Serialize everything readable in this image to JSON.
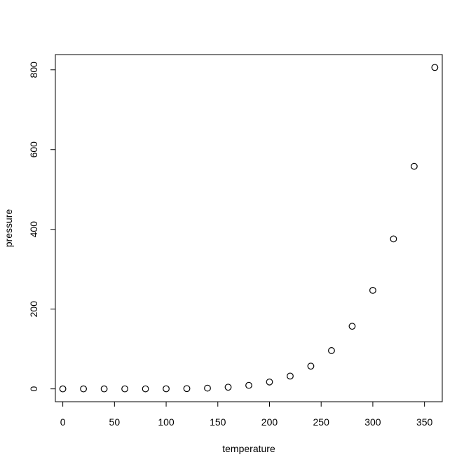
{
  "chart_data": {
    "type": "scatter",
    "title": "",
    "xlabel": "temperature",
    "ylabel": "pressure",
    "xlim": [
      -7.2,
      367.2
    ],
    "ylim": [
      -32.2,
      838.2
    ],
    "xticks": [
      0,
      50,
      100,
      150,
      200,
      250,
      300,
      350
    ],
    "yticks": [
      0,
      200,
      400,
      600,
      800
    ],
    "grid": false,
    "legend": "none",
    "marker": "open-circle",
    "color": "#000000",
    "x": [
      0,
      20,
      40,
      60,
      80,
      100,
      120,
      140,
      160,
      180,
      200,
      220,
      240,
      260,
      280,
      300,
      320,
      340,
      360
    ],
    "y": [
      0.0002,
      0.0012,
      0.006,
      0.03,
      0.09,
      0.27,
      0.75,
      1.85,
      4.2,
      8.8,
      17.3,
      32.1,
      57,
      96,
      157,
      247,
      376,
      558,
      806
    ]
  }
}
